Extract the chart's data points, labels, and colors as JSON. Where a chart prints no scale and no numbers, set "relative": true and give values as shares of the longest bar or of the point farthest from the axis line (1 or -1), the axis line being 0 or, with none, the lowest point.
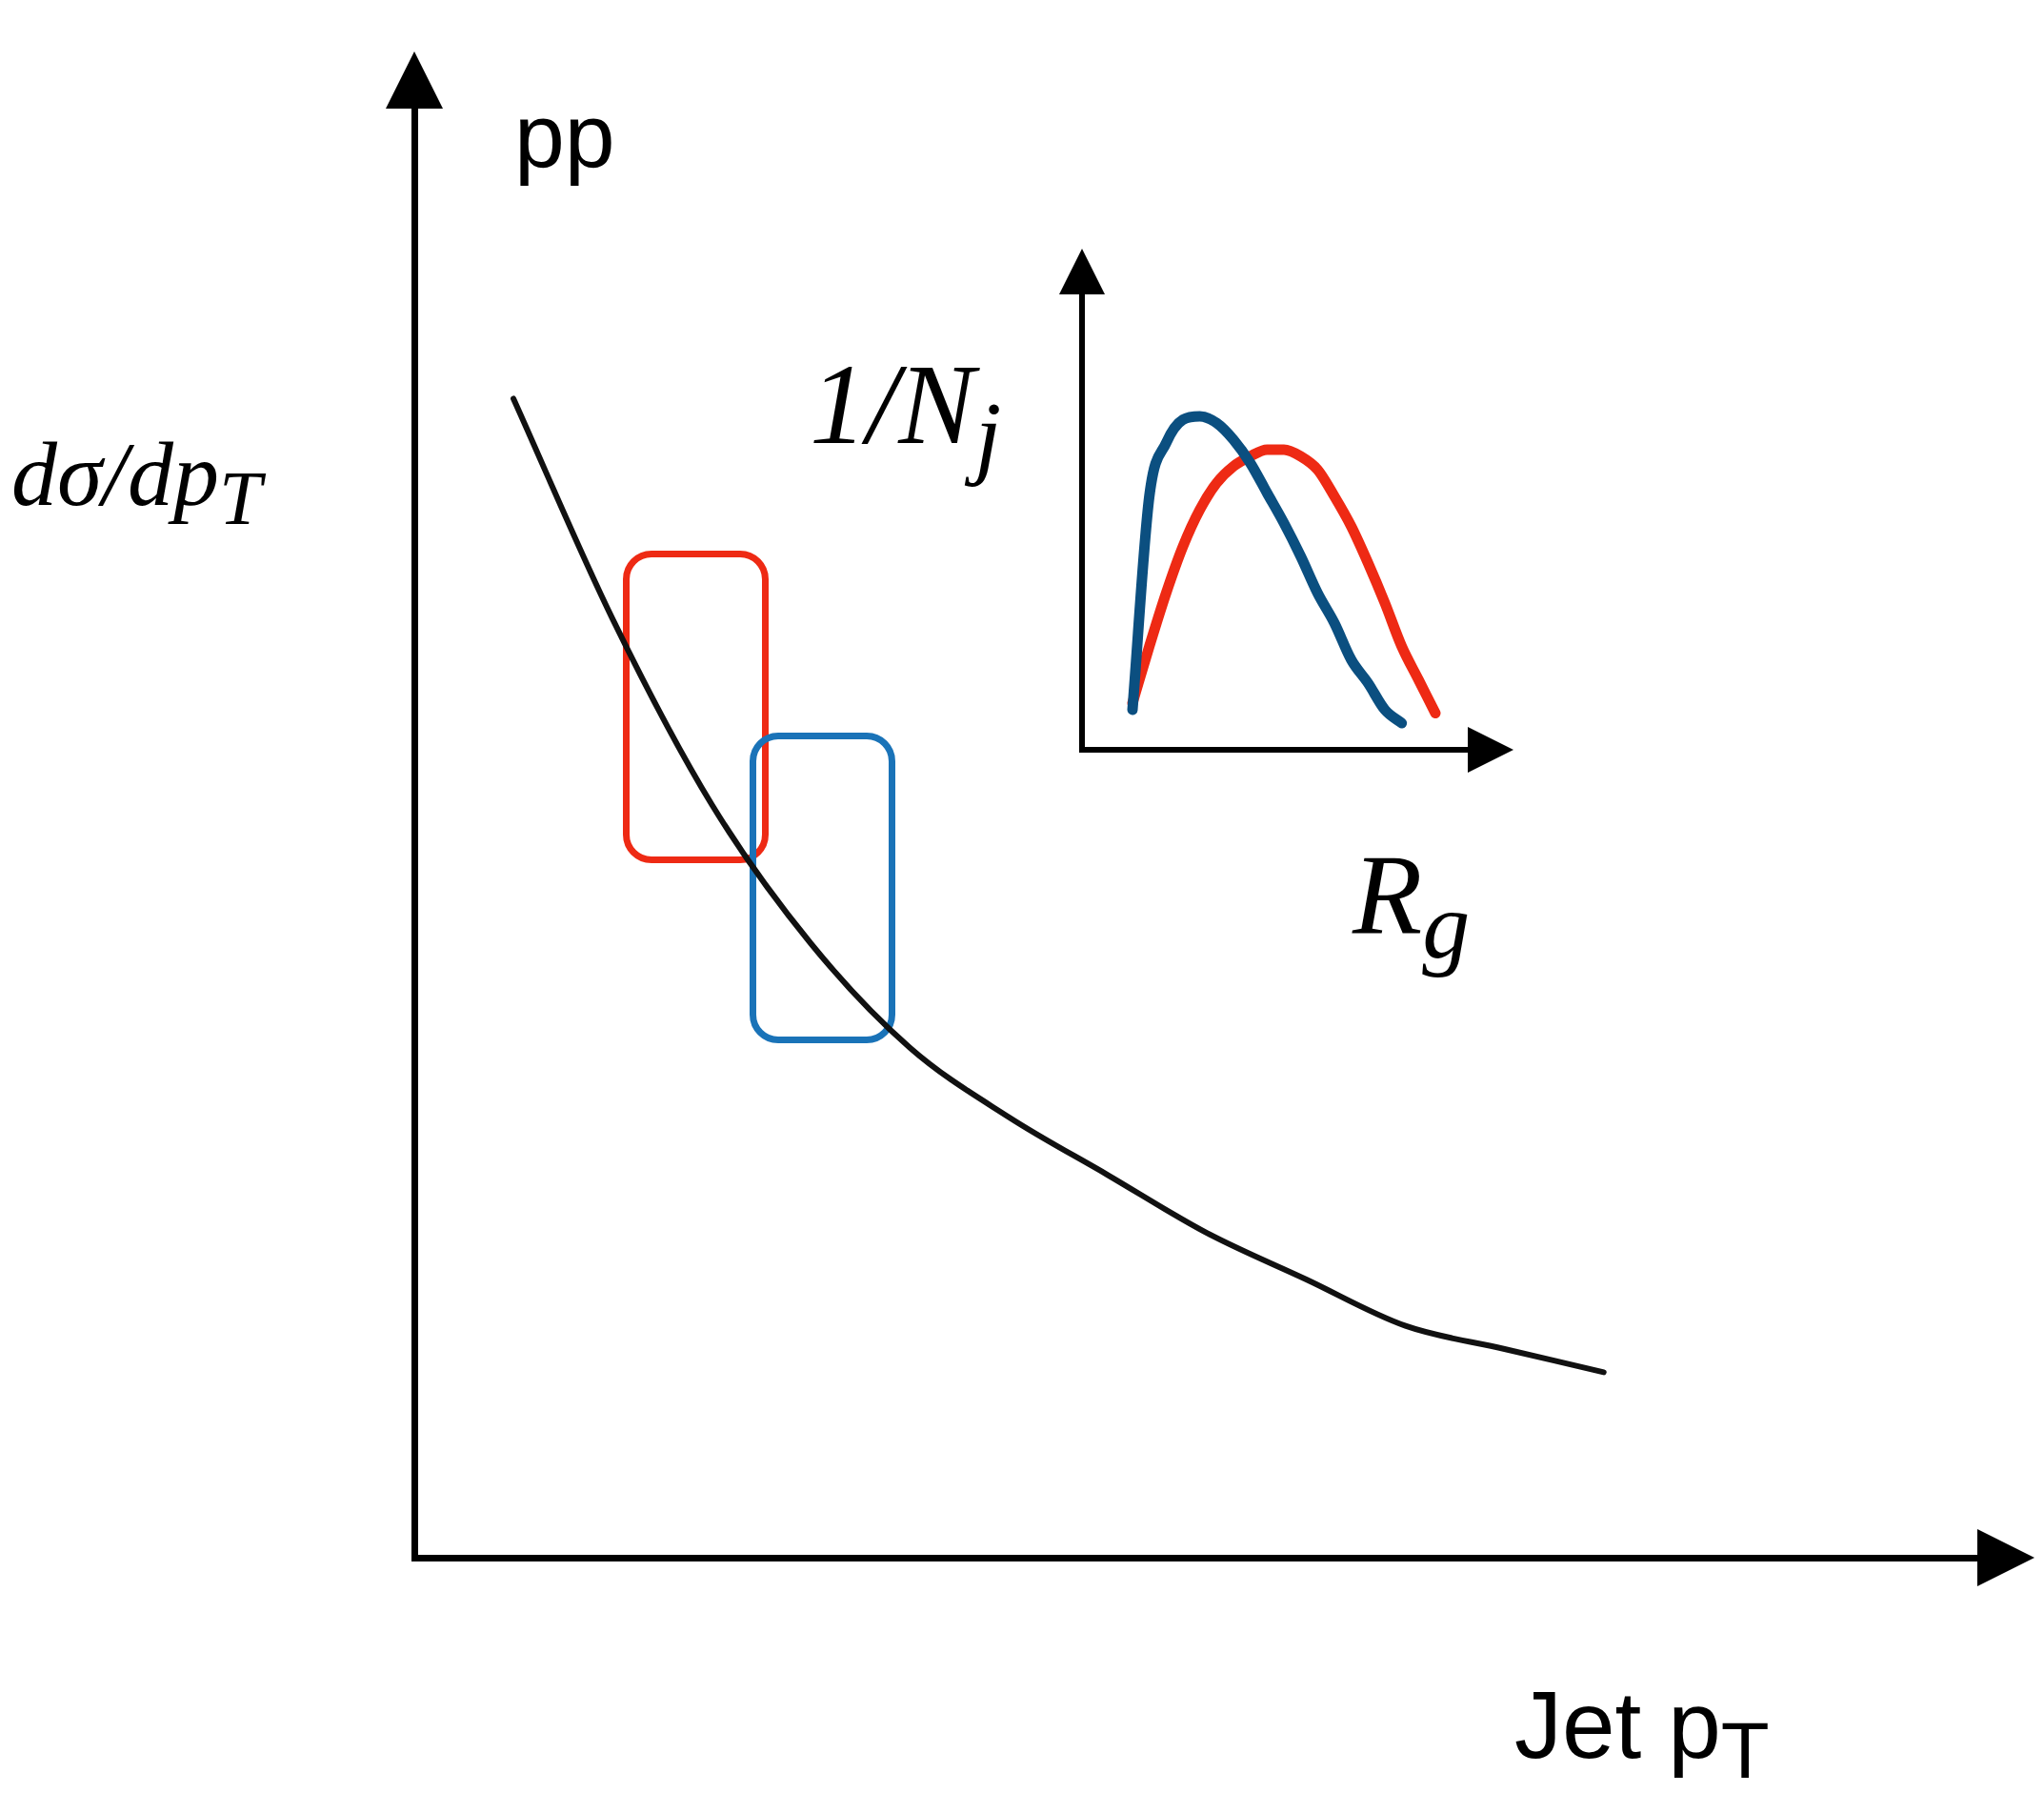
{
  "chart_data": [
    {
      "type": "line",
      "relative": true,
      "tick_labels": false,
      "ylabel": "dσ/dp$_{T}$",
      "xlabel": "Jet p$_{T}$",
      "annotations": [
        "pp"
      ],
      "categories": [
        null,
        null,
        null,
        null,
        null,
        null,
        null,
        null,
        null,
        null,
        null,
        null,
        null,
        null,
        null,
        null,
        null
      ],
      "series": [
        {
          "color": "#111111",
          "values": [
            null,
            1,
            0.81,
            0.65,
            0.53,
            0.44,
            0.38,
            0.33,
            0.28,
            0.24,
            0.2,
            0.18,
            0.16,
            null,
            null,
            null,
            null
          ]
        }
      ]
    },
    {
      "type": "line",
      "relative": true,
      "tick_labels": false,
      "ylabel": "1/N$_{j}$",
      "xlabel": "R$_{g}$",
      "categories": [
        null,
        null,
        null,
        null,
        null,
        null,
        null,
        null,
        null,
        null,
        null,
        null,
        null,
        null,
        null,
        null,
        null,
        null,
        null,
        null,
        null,
        null,
        null,
        null,
        null
      ],
      "series": [
        {
          "color": "#0b4f80",
          "values": [
            null,
            null,
            null,
            0.12,
            0.76,
            0.92,
            0.99,
            1,
            0.98,
            0.93,
            0.86,
            0.77,
            0.68,
            0.58,
            0.47,
            0.38,
            0.27,
            0.2,
            0.12,
            0.08,
            null,
            null,
            null,
            null,
            null
          ]
        },
        {
          "color": "#ee2a14",
          "values": [
            null,
            null,
            null,
            0.14,
            0.31,
            0.47,
            0.61,
            0.72,
            0.8,
            0.85,
            0.88,
            0.9,
            0.9,
            0.88,
            0.84,
            0.76,
            0.67,
            0.56,
            0.44,
            0.31,
            0.21,
            0.11,
            null,
            null,
            null
          ]
        }
      ]
    }
  ]
}
